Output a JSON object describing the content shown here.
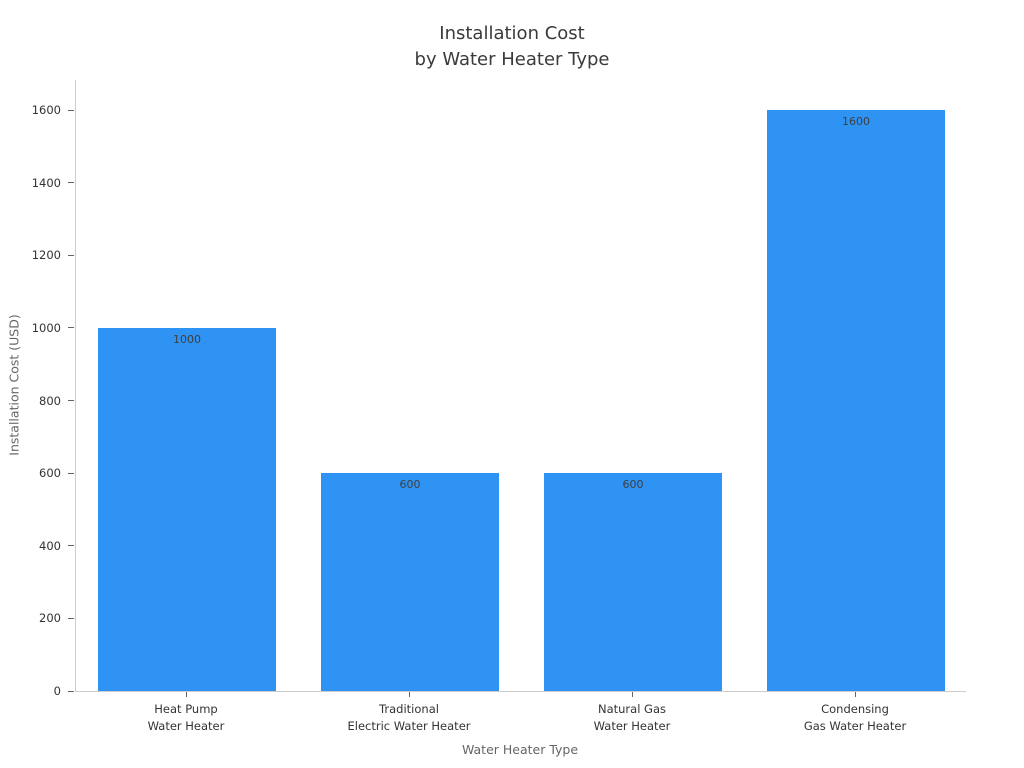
{
  "figure": {
    "title_line1": "Installation Cost",
    "title_line2": "by Water Heater Type",
    "xlabel": "Water Heater Type",
    "ylabel": "Installation Cost (USD)"
  },
  "chart_data": {
    "type": "bar",
    "title": "Installation Cost by Water Heater Type",
    "xlabel": "Water Heater Type",
    "ylabel": "Installation Cost (USD)",
    "categories": [
      [
        "Heat Pump",
        "Water Heater"
      ],
      [
        "Traditional",
        "Electric Water Heater"
      ],
      [
        "Natural Gas",
        "Water Heater"
      ],
      [
        "Condensing",
        "Gas Water Heater"
      ]
    ],
    "values": [
      1000,
      600,
      600,
      1600
    ],
    "bar_labels": [
      "1000",
      "600",
      "600",
      "1600"
    ],
    "yticks": [
      0,
      200,
      400,
      600,
      800,
      1000,
      1200,
      1400,
      1600
    ],
    "ylim": [
      0,
      1683
    ],
    "grid": false,
    "legend": null,
    "colors": {
      "bar": "#2E93F3",
      "bar_value_label": "#3f3f3f",
      "spine": "#cccccc",
      "tick_mark": "#666666",
      "tick_label": "#333333",
      "axis_label": "#666666",
      "title": "#3a3a3a",
      "background": "#ffffff"
    }
  }
}
